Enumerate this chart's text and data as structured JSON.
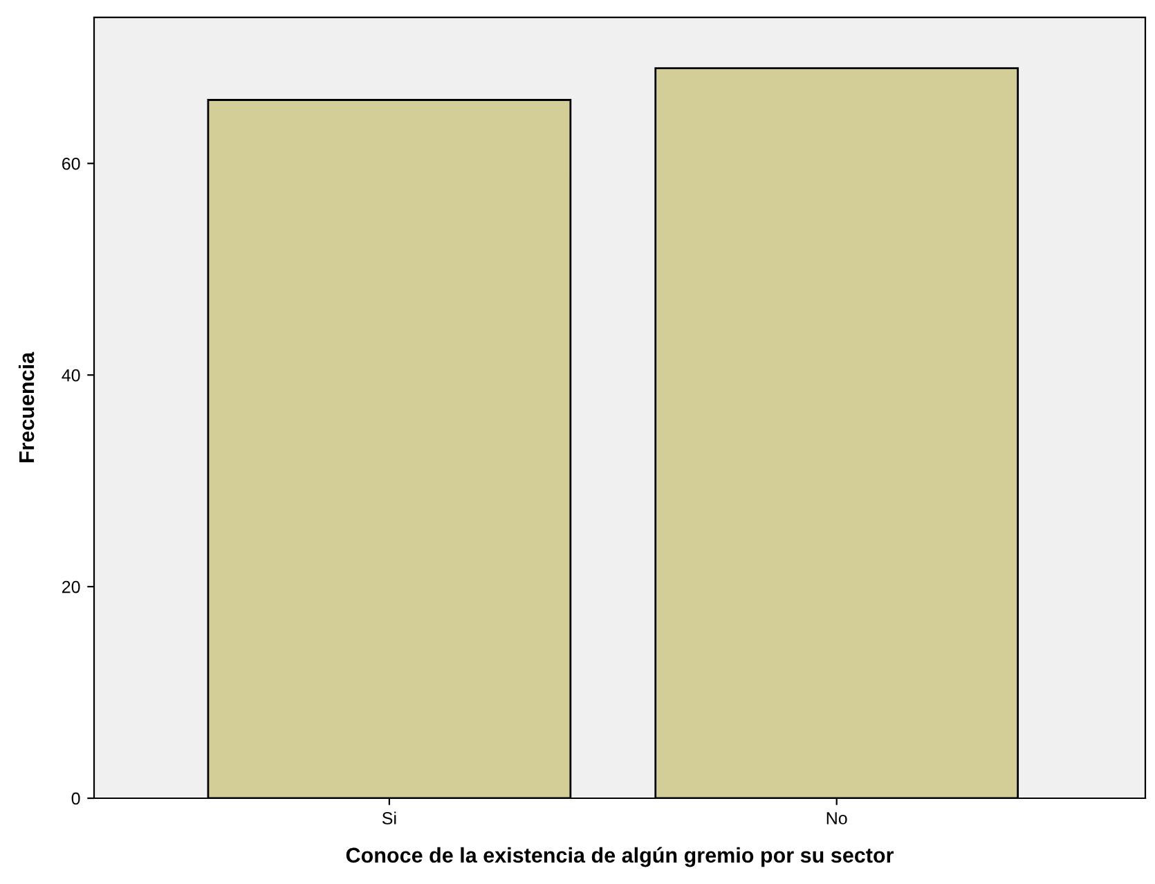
{
  "chart_data": {
    "type": "bar",
    "xlabel": "Conoce de la existencia de algún gremio por su sector",
    "ylabel": "Frecuencia",
    "categories": [
      "Si",
      "No"
    ],
    "series": [
      {
        "color": "#d3ce97",
        "values": [
          66,
          69
        ]
      }
    ],
    "ylim": [
      0,
      73.8
    ],
    "yticks": [
      0,
      20,
      40,
      60
    ],
    "grid": false,
    "legend": false
  }
}
